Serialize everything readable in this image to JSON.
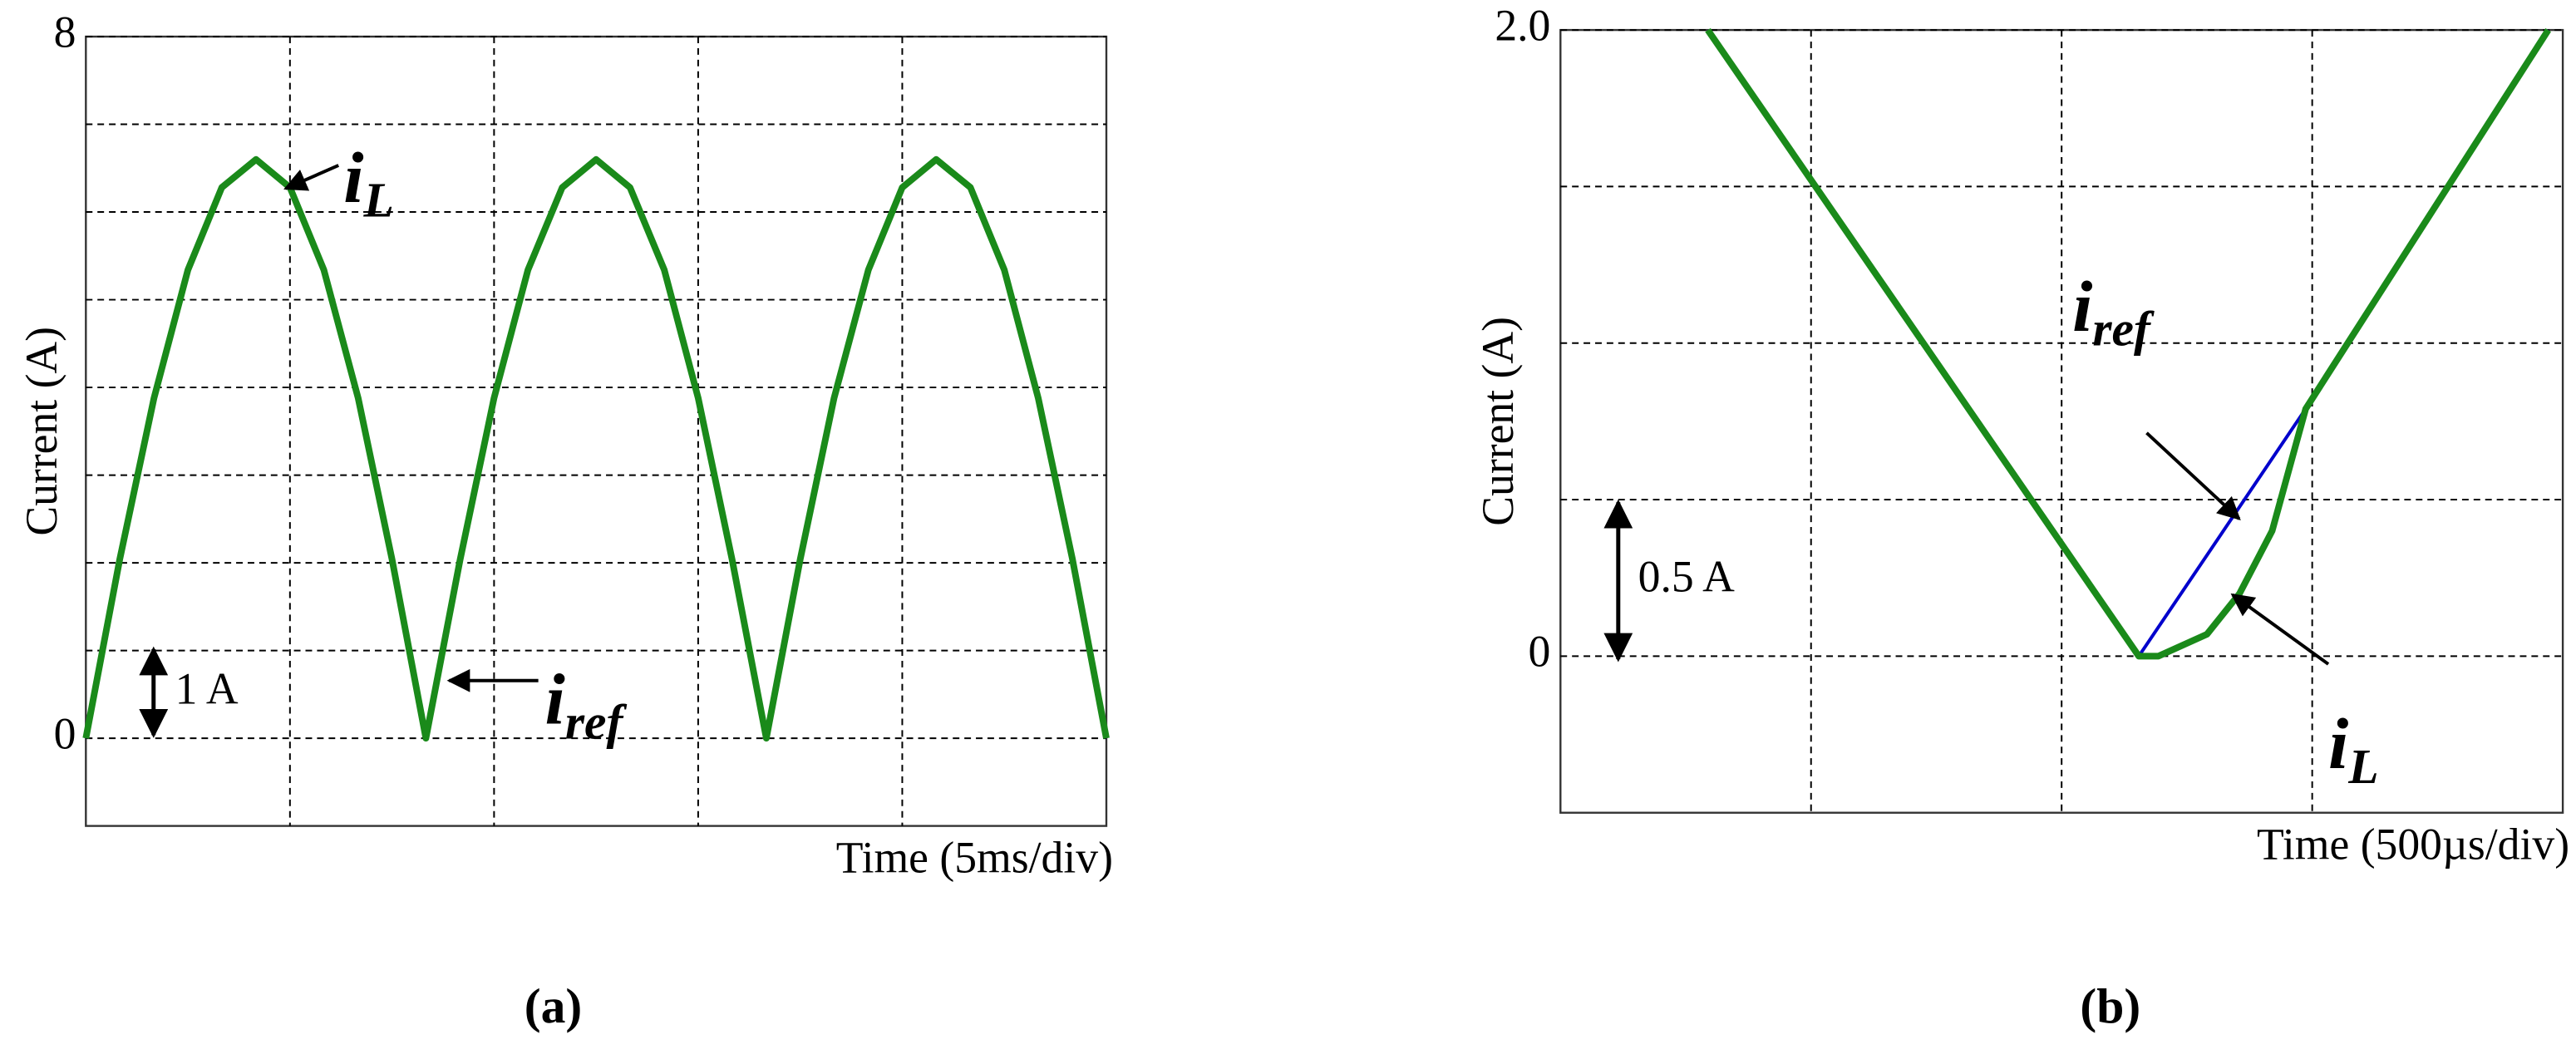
{
  "chart_data": [
    {
      "type": "line",
      "y_label": "Current (A)",
      "x_label": "Time (5ms/div)",
      "caption": "(a)",
      "xlim": [
        0,
        25
      ],
      "xgrid": [
        5,
        10,
        15,
        20
      ],
      "ylim": [
        -1,
        8
      ],
      "yticks": [
        0,
        8
      ],
      "ygrid": [
        1,
        2,
        3,
        4,
        5,
        6,
        7
      ],
      "grid": true,
      "x": [
        0,
        0.83,
        1.67,
        2.5,
        3.33,
        4.17,
        5,
        5.83,
        6.67,
        7.5,
        8.33,
        9.17,
        10,
        10.83,
        11.67,
        12.5,
        13.33,
        14.17,
        15,
        15.83,
        16.67,
        17.5,
        18.33,
        19.17,
        20,
        20.83,
        21.67,
        22.5,
        23.33,
        24.17,
        25
      ],
      "series": [
        {
          "color": "#0000cc",
          "values": [
            0,
            2.04,
            3.88,
            5.34,
            6.28,
            6.6,
            6.28,
            5.34,
            3.88,
            2.04,
            0,
            2.04,
            3.88,
            5.34,
            6.28,
            6.6,
            6.28,
            5.34,
            3.88,
            2.04,
            0,
            2.04,
            3.88,
            5.34,
            6.28,
            6.6,
            6.28,
            5.34,
            3.88,
            2.04,
            0
          ]
        },
        {
          "color": "#1a8a1a",
          "values": [
            0,
            2.04,
            3.88,
            5.34,
            6.28,
            6.6,
            6.28,
            5.34,
            3.88,
            2.04,
            0,
            2.04,
            3.88,
            5.34,
            6.28,
            6.6,
            6.28,
            5.34,
            3.88,
            2.04,
            0,
            2.04,
            3.88,
            5.34,
            6.28,
            6.6,
            6.28,
            5.34,
            3.88,
            2.04,
            0
          ]
        }
      ],
      "annotations": [
        {
          "text": "i",
          "sub": "L"
        },
        {
          "text": "i",
          "sub": "ref"
        },
        {
          "text": "1 A"
        }
      ]
    },
    {
      "type": "line",
      "y_label": "Current (A)",
      "x_label": "Time (500µs/div)",
      "caption": "(b)",
      "xlim": [
        0,
        2000
      ],
      "xgrid": [
        500,
        1000,
        1500
      ],
      "ylim": [
        -0.5,
        2
      ],
      "yticks": [
        0,
        {
          "value": 2,
          "label": "2.0"
        }
      ],
      "ygrid": [
        0.5,
        1,
        1.5
      ],
      "grid": true,
      "series": [
        {
          "color": "#0000cc",
          "x": [
            294,
            1154,
            1487,
            1971
          ],
          "values": [
            2,
            0,
            0.79,
            2
          ]
        },
        {
          "color": "#1a8a1a",
          "x": [
            294,
            1154,
            1193,
            1290,
            1355,
            1420,
            1487,
            1971
          ],
          "values": [
            2,
            0,
            0,
            0.07,
            0.2,
            0.4,
            0.79,
            2
          ]
        }
      ],
      "annotations": [
        {
          "text": "i",
          "sub": "ref"
        },
        {
          "text": "i",
          "sub": "L"
        },
        {
          "text": "0.5 A"
        }
      ]
    }
  ]
}
